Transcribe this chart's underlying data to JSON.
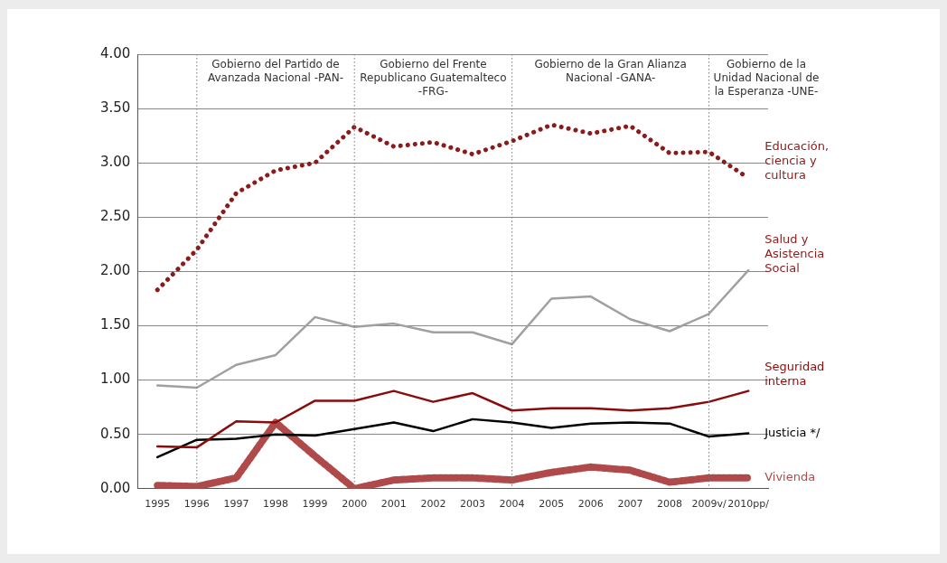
{
  "chart_data": {
    "type": "line",
    "categories": [
      "1995",
      "1996",
      "1997",
      "1998",
      "1999",
      "2000",
      "2001",
      "2002",
      "2003",
      "2004",
      "2005",
      "2006",
      "2007",
      "2008",
      "2009v/",
      "2010pp/"
    ],
    "series": [
      {
        "name": "Educación, ciencia y cultura",
        "color": "#8b1a1a",
        "line_style": "dotted",
        "values": [
          1.83,
          2.2,
          2.72,
          2.93,
          3.0,
          3.33,
          3.15,
          3.19,
          3.08,
          3.2,
          3.35,
          3.27,
          3.34,
          3.09,
          3.1,
          2.86
        ]
      },
      {
        "name": "Salud y Asistencia Social",
        "color": "#a0a0a0",
        "line_style": "solid",
        "values": [
          0.95,
          0.93,
          1.14,
          1.23,
          1.58,
          1.49,
          1.52,
          1.44,
          1.44,
          1.33,
          1.75,
          1.77,
          1.56,
          1.45,
          1.61,
          2.01
        ]
      },
      {
        "name": "Seguridad interna",
        "color": "#8b0a0a",
        "line_style": "solid",
        "values": [
          0.39,
          0.38,
          0.62,
          0.61,
          0.81,
          0.81,
          0.9,
          0.8,
          0.88,
          0.72,
          0.74,
          0.74,
          0.72,
          0.74,
          0.8,
          0.9
        ]
      },
      {
        "name": "Justicia */",
        "color": "#000000",
        "line_style": "solid",
        "values": [
          0.29,
          0.45,
          0.46,
          0.5,
          0.49,
          0.55,
          0.61,
          0.53,
          0.64,
          0.61,
          0.56,
          0.6,
          0.61,
          0.6,
          0.48,
          0.51
        ]
      },
      {
        "name": "Vivienda",
        "color": "#b04a4a",
        "line_style": "dashed",
        "values": [
          0.03,
          0.02,
          0.1,
          0.61,
          0.3,
          0.0,
          0.08,
          0.1,
          0.1,
          0.08,
          0.15,
          0.2,
          0.17,
          0.06,
          0.1,
          0.1
        ]
      }
    ],
    "ylim": [
      0,
      4
    ],
    "yticks": [
      {
        "value": 0,
        "label": "0.00"
      },
      {
        "value": 0.5,
        "label": "0.50"
      },
      {
        "value": 1,
        "label": "1.00"
      },
      {
        "value": 1.5,
        "label": "1.50"
      },
      {
        "value": 2,
        "label": "2.00"
      },
      {
        "value": 2.5,
        "label": "2.50"
      },
      {
        "value": 3,
        "label": "3.00"
      },
      {
        "value": 3.5,
        "label": "3.50"
      },
      {
        "value": 4,
        "label": "4.00"
      }
    ],
    "grid": "y",
    "legend": false,
    "marker": "none",
    "ref_lines": [
      {
        "axis": "x",
        "value": "1996",
        "label": "Gobierno del Partido de Avanzada Nacional -PAN-",
        "line_style": "dotted"
      },
      {
        "axis": "x",
        "value": "2000",
        "label": "Gobierno del Frente Republicano Guatemalteco -FRG-",
        "line_style": "dotted"
      },
      {
        "axis": "x",
        "value": "2004",
        "label": "Gobierno de la Gran Alianza Nacional -GANA-",
        "line_style": "dotted"
      },
      {
        "axis": "x",
        "value": "2009v/",
        "label": "Gobierno de la Unidad Nacional de la Esperanza -UNE-",
        "line_style": "dotted"
      }
    ]
  }
}
